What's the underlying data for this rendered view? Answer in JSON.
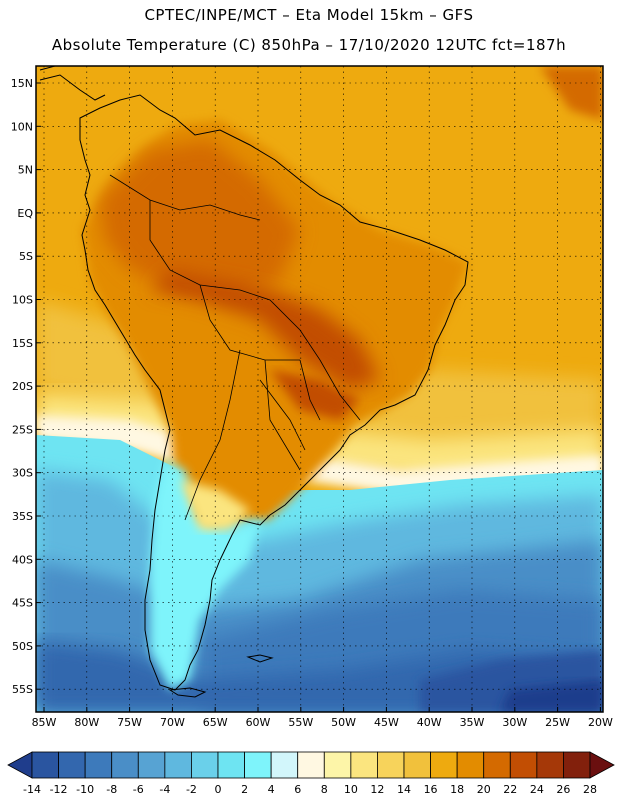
{
  "header": {
    "line1": "CPTEC/INPE/MCT –  Eta Model 15km – GFS",
    "line2": "Absolute Temperature (C) 850hPa – 17/10/2020 12UTC fct=187h"
  },
  "map": {
    "lat_labels": [
      "15N",
      "10N",
      "5N",
      "EQ",
      "5S",
      "10S",
      "15S",
      "20S",
      "25S",
      "30S",
      "35S",
      "40S",
      "45S",
      "50S",
      "55S"
    ],
    "lon_labels": [
      "85W",
      "80W",
      "75W",
      "70W",
      "65W",
      "60W",
      "55W",
      "50W",
      "45W",
      "40W",
      "35W",
      "30W",
      "25W",
      "20W"
    ],
    "gridlines": "dotted"
  },
  "colorbar": {
    "ticks": [
      "-14",
      "-12",
      "-10",
      "-8",
      "-6",
      "-4",
      "-2",
      "0",
      "2",
      "4",
      "6",
      "8",
      "10",
      "12",
      "14",
      "16",
      "18",
      "20",
      "22",
      "24",
      "26",
      "28"
    ],
    "colors": [
      "#1f3d8c",
      "#2a55a0",
      "#3367ae",
      "#3d7abb",
      "#4a8ec7",
      "#57a3d3",
      "#5fb8df",
      "#6ad0ea",
      "#6ee4f2",
      "#7ef4fb",
      "#d2f6fb",
      "#fff8e2",
      "#fdf5a8",
      "#fbe57f",
      "#f7d35b",
      "#f1c13c",
      "#eeaa0f",
      "#e38c00",
      "#d46a00",
      "#c24e03",
      "#a53808",
      "#82200c",
      "#6a0f0f"
    ]
  }
}
